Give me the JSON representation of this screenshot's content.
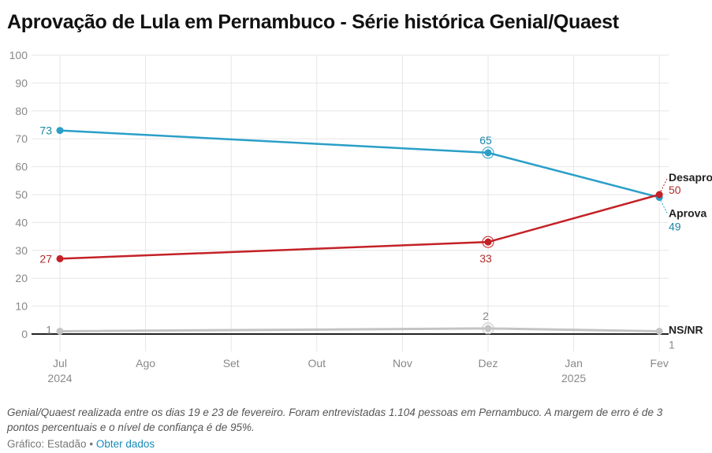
{
  "chart_data": {
    "type": "line",
    "title": "Aprovação de Lula em Pernambuco - Série histórica Genial/Quaest",
    "xlabel": "",
    "ylabel": "",
    "ylim": [
      0,
      100
    ],
    "yticks": [
      0,
      10,
      20,
      30,
      40,
      50,
      60,
      70,
      80,
      90,
      100
    ],
    "xticks": [
      {
        "label": "Jul",
        "year": "2024"
      },
      {
        "label": "Ago",
        "year": ""
      },
      {
        "label": "Set",
        "year": ""
      },
      {
        "label": "Out",
        "year": ""
      },
      {
        "label": "Nov",
        "year": ""
      },
      {
        "label": "Dez",
        "year": ""
      },
      {
        "label": "Jan",
        "year": "2025"
      },
      {
        "label": "Fev",
        "year": ""
      }
    ],
    "grid": true,
    "x": [
      "2024-07",
      "2024-12",
      "2025-02"
    ],
    "series": [
      {
        "name": "Aprova",
        "color": "#2a9fc8",
        "values": [
          73,
          65,
          49
        ]
      },
      {
        "name": "Desaprova",
        "label_shown": "Desapro",
        "color": "#c42127",
        "values": [
          27,
          33,
          50
        ]
      },
      {
        "name": "NS/NR",
        "color": "#c4c4c4",
        "values": [
          1,
          2,
          1
        ]
      }
    ]
  },
  "footer": {
    "note_line1": "Genial/Quaest realizada entre os dias 19 e 23 de fevereiro. Foram entrevistadas 1.104 pessoas em Pernambuco. A margem de erro é de 3",
    "note_line2": "pontos percentuais e o nível de confiança é de 95%.",
    "credit": "Gráfico: Estadão",
    "separator": "•",
    "data_link": "Obter dados"
  }
}
